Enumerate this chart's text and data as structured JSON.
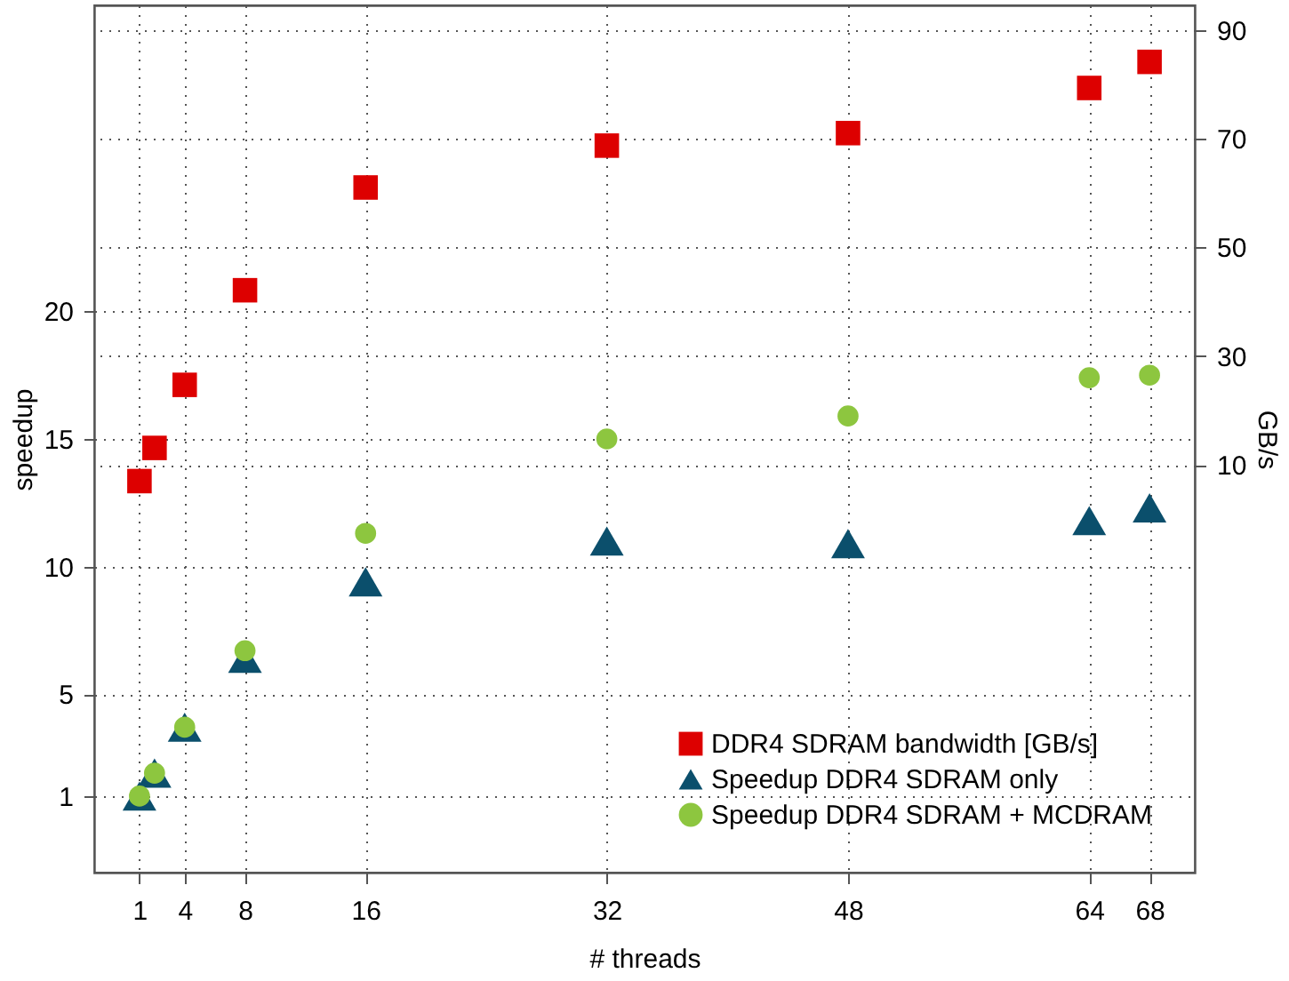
{
  "chart_data": {
    "type": "scatter",
    "xlabel": "# threads",
    "ylabel": "speedup",
    "y2label": "GB/s",
    "x": [
      1,
      2,
      4,
      8,
      16,
      32,
      48,
      64,
      68
    ],
    "xlim": [
      -2,
      71
    ],
    "xticks": [
      1,
      4,
      8,
      16,
      32,
      48,
      64,
      68
    ],
    "ylim": [
      -2,
      32
    ],
    "yticks": [
      1,
      5,
      10,
      15,
      20
    ],
    "y2lim": [
      -65,
      94.5
    ],
    "y2ticks": [
      10,
      30,
      50,
      70,
      90
    ],
    "grid": true,
    "legend": "bottom right",
    "series": [
      {
        "name": "DDR4 SDRAM bandwidth [GB/s]",
        "color": "#dd0000",
        "marker": "square",
        "axis": "y2",
        "values": [
          7,
          13.1,
          24.7,
          42.1,
          61,
          68.7,
          71,
          79.3,
          84.1
        ]
      },
      {
        "name": "Speedup DDR4 SDRAM only",
        "color": "#0b4f6c",
        "marker": "triangle",
        "values": [
          1.0,
          1.9,
          3.7,
          6.4,
          9.4,
          11.0,
          10.9,
          11.8,
          12.3
        ]
      },
      {
        "name": "Speedup DDR4 SDRAM + MCDRAM",
        "color": "#8dc63f",
        "marker": "circle",
        "values": [
          1.0,
          1.9,
          3.7,
          6.7,
          11.3,
          15.0,
          15.9,
          17.4,
          17.5
        ]
      }
    ]
  }
}
